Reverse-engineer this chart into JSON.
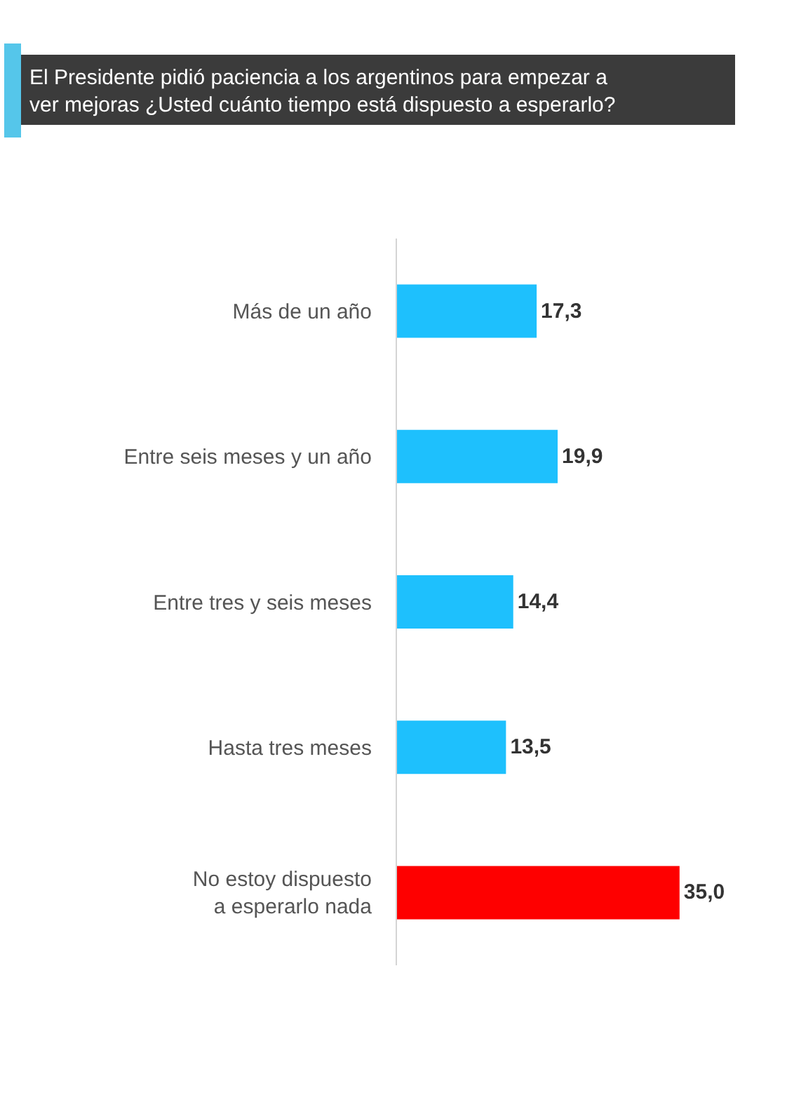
{
  "chart_data": {
    "type": "bar",
    "orientation": "horizontal",
    "title": "El Presidente pidió paciencia a los argentinos para empezar a ver mejoras ¿Usted cuánto tiempo está dispuesto a esperarlo?",
    "categories": [
      "Más de un año",
      "Entre seis meses y un año",
      "Entre tres y seis meses",
      "Hasta tres meses",
      "No estoy dispuesto a esperarlo nada"
    ],
    "values": [
      17.3,
      19.9,
      14.4,
      13.5,
      35.0
    ],
    "colors": [
      "#1ec0fd",
      "#1ec0fd",
      "#1ec0fd",
      "#1ec0fd",
      "#fe0000"
    ],
    "value_labels": [
      "17,3",
      "19,9",
      "14,4",
      "13,5",
      "35,0"
    ]
  }
}
